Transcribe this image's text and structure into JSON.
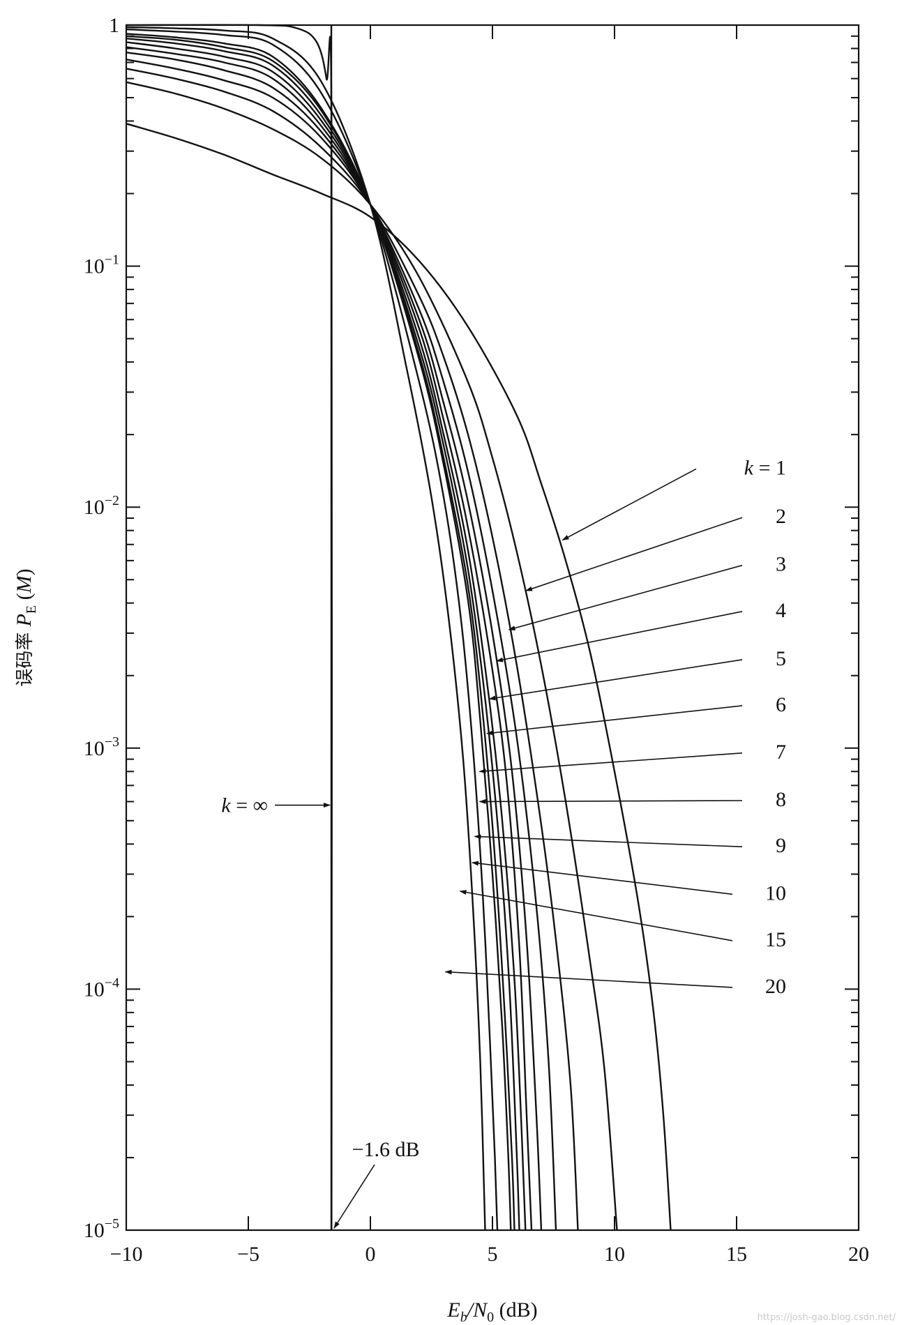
{
  "chart_data": {
    "type": "line",
    "title": "",
    "xlabel": "E_b/N_0 (dB)",
    "xlabel_parts": {
      "main": "E",
      "sub1": "b",
      "slash": "/N",
      "sub2": "0",
      "unit": " (dB)"
    },
    "ylabel": "误码率 P_E (M)",
    "ylabel_parts": {
      "prefix": "误码率 ",
      "p": "P",
      "sub": "E",
      "rest": " (",
      "m": "M",
      "close": ")"
    },
    "xlim": [
      -10,
      20
    ],
    "ylim": [
      1e-05,
      1
    ],
    "yscale": "log",
    "grid": false,
    "x_ticks": [
      "−10",
      "−5",
      "0",
      "5",
      "10",
      "15",
      "20"
    ],
    "x_tick_values": [
      -10,
      -5,
      0,
      5,
      10,
      15,
      20
    ],
    "y_ticks": [
      {
        "value": 1,
        "base": "1",
        "exp": ""
      },
      {
        "value": 0.1,
        "base": "10",
        "exp": "−1"
      },
      {
        "value": 0.01,
        "base": "10",
        "exp": "−2"
      },
      {
        "value": 0.001,
        "base": "10",
        "exp": "−3"
      },
      {
        "value": 0.0001,
        "base": "10",
        "exp": "−4"
      },
      {
        "value": 1e-05,
        "base": "10",
        "exp": "−5"
      }
    ],
    "series": [
      {
        "name": "1",
        "label_value": 0.0146,
        "arrow_tip": [
          7.7,
          0.0073
        ],
        "points": [
          [
            -10,
            0.39
          ],
          [
            -8,
            0.34
          ],
          [
            -6,
            0.29
          ],
          [
            -4,
            0.24
          ],
          [
            -2,
            0.2
          ],
          [
            0,
            0.16
          ],
          [
            2,
            0.105
          ],
          [
            4,
            0.056
          ],
          [
            6,
            0.024
          ],
          [
            7,
            0.0125
          ],
          [
            8,
            0.006
          ],
          [
            9,
            0.0025
          ],
          [
            10,
            0.0008
          ],
          [
            11,
            0.00022
          ],
          [
            11.6,
            8e-05
          ],
          [
            12,
            3e-05
          ],
          [
            12.3,
            1e-05
          ]
        ]
      },
      {
        "name": "2",
        "label_value": 0.00917,
        "arrow_tip": [
          6.2,
          0.0045
        ],
        "points": [
          [
            -10,
            0.58
          ],
          [
            -8,
            0.52
          ],
          [
            -6,
            0.45
          ],
          [
            -4,
            0.37
          ],
          [
            -2,
            0.28
          ],
          [
            0,
            0.18
          ],
          [
            2,
            0.09
          ],
          [
            4,
            0.033
          ],
          [
            5,
            0.016
          ],
          [
            6,
            0.0065
          ],
          [
            7,
            0.0022
          ],
          [
            8,
            0.0006
          ],
          [
            9,
            0.00013
          ],
          [
            9.6,
            4.5e-05
          ],
          [
            10.1,
            1e-05
          ]
        ]
      },
      {
        "name": "3",
        "label_value": 0.00581,
        "arrow_tip": [
          5.5,
          0.0031
        ],
        "points": [
          [
            -10,
            0.66
          ],
          [
            -8,
            0.6
          ],
          [
            -6,
            0.53
          ],
          [
            -4,
            0.44
          ],
          [
            -2,
            0.31
          ],
          [
            0,
            0.18
          ],
          [
            2,
            0.075
          ],
          [
            3,
            0.042
          ],
          [
            4,
            0.02
          ],
          [
            5,
            0.0075
          ],
          [
            6,
            0.0022
          ],
          [
            7,
            0.00048
          ],
          [
            7.6,
            0.00016
          ],
          [
            8.2,
            4e-05
          ],
          [
            8.5,
            1e-05
          ]
        ]
      },
      {
        "name": "4",
        "label_value": 0.00374,
        "arrow_tip": [
          5.0,
          0.0023
        ],
        "points": [
          [
            -10,
            0.72
          ],
          [
            -8,
            0.66
          ],
          [
            -6,
            0.59
          ],
          [
            -4,
            0.5
          ],
          [
            -2,
            0.34
          ],
          [
            0,
            0.18
          ],
          [
            2,
            0.066
          ],
          [
            3,
            0.033
          ],
          [
            4,
            0.014
          ],
          [
            5,
            0.0045
          ],
          [
            6,
            0.0011
          ],
          [
            6.8,
            0.00022
          ],
          [
            7.3,
            5e-05
          ],
          [
            7.6,
            1e-05
          ]
        ]
      },
      {
        "name": "5",
        "label_value": 0.00236,
        "arrow_tip": [
          4.7,
          0.0016
        ],
        "points": [
          [
            -10,
            0.77
          ],
          [
            -8,
            0.72
          ],
          [
            -6,
            0.65
          ],
          [
            -4,
            0.55
          ],
          [
            -2,
            0.36
          ],
          [
            0,
            0.18
          ],
          [
            2,
            0.06
          ],
          [
            3,
            0.027
          ],
          [
            4,
            0.0105
          ],
          [
            5,
            0.003
          ],
          [
            5.8,
            0.0008
          ],
          [
            6.4,
            0.00016
          ],
          [
            6.8,
            3e-05
          ],
          [
            7.0,
            1e-05
          ]
        ]
      },
      {
        "name": "6",
        "label_value": 0.00152,
        "arrow_tip": [
          4.6,
          0.00115
        ],
        "points": [
          [
            -10,
            0.81
          ],
          [
            -8,
            0.76
          ],
          [
            -6,
            0.7
          ],
          [
            -4,
            0.6
          ],
          [
            -2,
            0.38
          ],
          [
            0,
            0.18
          ],
          [
            2,
            0.055
          ],
          [
            3,
            0.023
          ],
          [
            4,
            0.0082
          ],
          [
            5,
            0.0021
          ],
          [
            5.6,
            0.0007
          ],
          [
            6.1,
            0.00015
          ],
          [
            6.4,
            3e-05
          ],
          [
            6.6,
            1e-05
          ]
        ]
      },
      {
        "name": "7",
        "label_value": 0.000967,
        "arrow_tip": [
          4.3,
          0.0008
        ],
        "points": [
          [
            -10,
            0.85
          ],
          [
            -8,
            0.8
          ],
          [
            -6,
            0.74
          ],
          [
            -4,
            0.64
          ],
          [
            -2,
            0.4
          ],
          [
            0,
            0.18
          ],
          [
            2,
            0.05
          ],
          [
            3,
            0.02
          ],
          [
            4,
            0.0066
          ],
          [
            4.8,
            0.0018
          ],
          [
            5.4,
            0.0005
          ],
          [
            5.9,
            0.00011
          ],
          [
            6.2,
            2.5e-05
          ],
          [
            6.35,
            1e-05
          ]
        ]
      },
      {
        "name": "8",
        "label_value": 0.000614,
        "arrow_tip": [
          4.3,
          0.0006
        ],
        "points": [
          [
            -10,
            0.88
          ],
          [
            -8,
            0.84
          ],
          [
            -6,
            0.78
          ],
          [
            -4,
            0.68
          ],
          [
            -2,
            0.42
          ],
          [
            0,
            0.18
          ],
          [
            2,
            0.046
          ],
          [
            3,
            0.018
          ],
          [
            4,
            0.0055
          ],
          [
            4.7,
            0.0016
          ],
          [
            5.3,
            0.00038
          ],
          [
            5.7,
            0.0001
          ],
          [
            6.0,
            2e-05
          ],
          [
            6.1,
            1e-05
          ]
        ]
      },
      {
        "name": "9",
        "label_value": 0.000395,
        "arrow_tip": [
          4.1,
          0.00043
        ],
        "points": [
          [
            -10,
            0.9
          ],
          [
            -8,
            0.87
          ],
          [
            -6,
            0.81
          ],
          [
            -4,
            0.71
          ],
          [
            -2,
            0.44
          ],
          [
            0,
            0.18
          ],
          [
            2,
            0.043
          ],
          [
            3,
            0.016
          ],
          [
            4,
            0.0047
          ],
          [
            4.6,
            0.0014
          ],
          [
            5.1,
            0.00035
          ],
          [
            5.5,
            8e-05
          ],
          [
            5.8,
            2e-05
          ],
          [
            5.9,
            1e-05
          ]
        ]
      },
      {
        "name": "10",
        "label_value": 0.000251,
        "arrow_tip": [
          4.0,
          0.000335
        ],
        "points": [
          [
            -10,
            0.92
          ],
          [
            -8,
            0.89
          ],
          [
            -6,
            0.84
          ],
          [
            -4,
            0.74
          ],
          [
            -2,
            0.45
          ],
          [
            0,
            0.18
          ],
          [
            2,
            0.041
          ],
          [
            3,
            0.015
          ],
          [
            4,
            0.0041
          ],
          [
            4.5,
            0.0013
          ],
          [
            5.0,
            0.0003
          ],
          [
            5.4,
            7e-05
          ],
          [
            5.65,
            2e-05
          ],
          [
            5.75,
            1e-05
          ]
        ]
      },
      {
        "name": "15",
        "label_value": 0.000161,
        "arrow_tip": [
          3.5,
          0.000255
        ],
        "points": [
          [
            -10,
            0.96
          ],
          [
            -8,
            0.94
          ],
          [
            -6,
            0.91
          ],
          [
            -4,
            0.83
          ],
          [
            -2,
            0.52
          ],
          [
            0,
            0.18
          ],
          [
            2,
            0.033
          ],
          [
            3,
            0.011
          ],
          [
            3.7,
            0.0035
          ],
          [
            4.2,
            0.001
          ],
          [
            4.6,
            0.00025
          ],
          [
            4.9,
            6e-05
          ],
          [
            5.1,
            2e-05
          ],
          [
            5.2,
            1e-05
          ]
        ]
      },
      {
        "name": "20",
        "label_value": 0.000103,
        "arrow_tip": [
          2.9,
          0.000118
        ],
        "points": [
          [
            -10,
            0.98
          ],
          [
            -8,
            0.97
          ],
          [
            -6,
            0.95
          ],
          [
            -4,
            0.88
          ],
          [
            -2,
            0.58
          ],
          [
            0,
            0.18
          ],
          [
            1.5,
            0.037
          ],
          [
            2.5,
            0.011
          ],
          [
            3.2,
            0.0035
          ],
          [
            3.8,
            0.0009
          ],
          [
            4.2,
            0.00022
          ],
          [
            4.5,
            5e-05
          ],
          [
            4.7,
            1e-05
          ]
        ]
      },
      {
        "name": "∞",
        "label_value": 0.00058,
        "arrow_tip": [
          -1.6,
          0.00058
        ],
        "points": [
          [
            -10,
            1
          ],
          [
            -4.5,
            1
          ],
          [
            -3.0,
            0.97
          ],
          [
            -2.2,
            0.85
          ],
          [
            -1.8,
            0.6
          ],
          [
            -1.59,
            0.35
          ],
          [
            -1.59,
            1e-05
          ]
        ]
      }
    ],
    "vline": {
      "x": -1.6,
      "label": "k = ∞",
      "label_k": "k",
      "label_rest": " = ∞",
      "label_y": 0.00058
    },
    "annotations": [
      {
        "text": "−1.6 dB",
        "x": -1.6,
        "y": 1e-05
      }
    ],
    "k_label_prefix": "k = ",
    "watermark": "https://josh-gao.blog.csdn.net/"
  }
}
